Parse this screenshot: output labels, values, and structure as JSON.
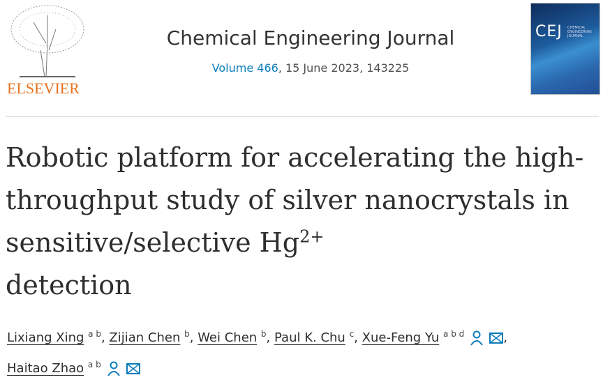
{
  "publisher": {
    "name": "ELSEVIER"
  },
  "journal": {
    "title": "Chemical Engineering Journal",
    "volume_link": "Volume 466",
    "issue_info": ", 15 June 2023, 143225",
    "cover_text": "CEJ",
    "cover_subtitle": "CHEMICAL ENGINEERING JOURNAL"
  },
  "article": {
    "title_main": "Robotic platform for accelerating the high-throughput study of silver nanocrystals in sensitive/selective Hg",
    "title_sup": "2+",
    "title_end": "detection"
  },
  "authors": [
    {
      "name": "Lixiang Xing",
      "aff": "a b",
      "sep": ", "
    },
    {
      "name": "Zijian Chen",
      "aff": "b",
      "sep": ", "
    },
    {
      "name": "Wei Chen",
      "aff": "b",
      "sep": ", "
    },
    {
      "name": "Paul K. Chu",
      "aff": "c",
      "sep": ", "
    },
    {
      "name": "Xue-Feng Yu",
      "aff": "a b d",
      "sep": ",",
      "icons": true
    },
    {
      "name": "Haitao Zhao",
      "aff": "a b",
      "sep": "",
      "icons": true
    }
  ],
  "colors": {
    "link": "#0c7dbb",
    "publisher": "#e9711c",
    "icon": "#0c7dbb"
  }
}
